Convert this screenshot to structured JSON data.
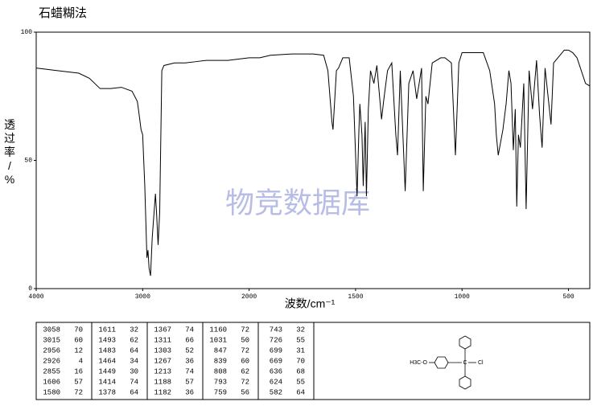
{
  "title": "石蜡糊法",
  "watermark": "物竞数据库",
  "chart_data": {
    "type": "line",
    "color": "#000000",
    "xlabel": "波数/cm⁻¹",
    "ylabel": "透过率/%",
    "xlim": [
      4000,
      400
    ],
    "ylim": [
      0,
      100
    ],
    "xscale": {
      "type": "piecewise",
      "break": 2000,
      "ratio": 2
    },
    "xticks": [
      4000,
      3000,
      2000,
      1500,
      1000,
      500
    ],
    "yticks": [
      0,
      50,
      100
    ],
    "x": [
      4000,
      3800,
      3600,
      3500,
      3400,
      3300,
      3200,
      3100,
      3050,
      3040,
      3015,
      3000,
      2980,
      2960,
      2950,
      2940,
      2926,
      2910,
      2880,
      2870,
      2855,
      2840,
      2820,
      2800,
      2700,
      2600,
      2500,
      2400,
      2300,
      2200,
      2100,
      2000,
      1950,
      1900,
      1800,
      1700,
      1650,
      1630,
      1611,
      1606,
      1590,
      1580,
      1560,
      1530,
      1510,
      1493,
      1485,
      1480,
      1470,
      1464,
      1455,
      1449,
      1440,
      1430,
      1414,
      1400,
      1378,
      1367,
      1350,
      1330,
      1311,
      1303,
      1290,
      1267,
      1250,
      1230,
      1213,
      1190,
      1182,
      1170,
      1160,
      1140,
      1100,
      1080,
      1050,
      1031,
      1015,
      1000,
      950,
      900,
      870,
      847,
      839,
      830,
      808,
      793,
      780,
      770,
      759,
      750,
      743,
      735,
      726,
      710,
      699,
      685,
      669,
      650,
      636,
      624,
      610,
      582,
      570,
      550,
      520,
      500,
      480,
      460,
      420,
      400
    ],
    "values": [
      86,
      85,
      84,
      82,
      78,
      78,
      78.5,
      77,
      73,
      70,
      62,
      60,
      40,
      12,
      15,
      8,
      5,
      20,
      37,
      30,
      17,
      30,
      85,
      87,
      88,
      88,
      88.5,
      89,
      89,
      89,
      89.5,
      90,
      90,
      91,
      91.5,
      91.5,
      91,
      85,
      65,
      62,
      85,
      86,
      90,
      90,
      75,
      36,
      60,
      72,
      60,
      40,
      65,
      36,
      70,
      85,
      80,
      87,
      66,
      74,
      85,
      88,
      60,
      52,
      85,
      38,
      80,
      85,
      74,
      86,
      38,
      75,
      72,
      88,
      90,
      90,
      88,
      52,
      88,
      92,
      92,
      92,
      85,
      72,
      60,
      52,
      62,
      72,
      85,
      80,
      54,
      70,
      32,
      60,
      55,
      80,
      31,
      85,
      70,
      89,
      68,
      55,
      86,
      64,
      88,
      90,
      93,
      93,
      92,
      90,
      80,
      79
    ]
  },
  "peak_table": {
    "columns": [
      [
        [
          3058,
          70
        ],
        [
          3015,
          60
        ],
        [
          2956,
          12
        ],
        [
          2926,
          4
        ],
        [
          2855,
          16
        ],
        [
          1606,
          57
        ],
        [
          1580,
          72
        ]
      ],
      [
        [
          1611,
          32
        ],
        [
          1493,
          62
        ],
        [
          1483,
          64
        ],
        [
          1464,
          34
        ],
        [
          1449,
          30
        ],
        [
          1414,
          74
        ],
        [
          1378,
          64
        ]
      ],
      [
        [
          1367,
          74
        ],
        [
          1311,
          66
        ],
        [
          1303,
          52
        ],
        [
          1267,
          36
        ],
        [
          1213,
          74
        ],
        [
          1188,
          57
        ],
        [
          1182,
          36
        ]
      ],
      [
        [
          1160,
          72
        ],
        [
          1031,
          50
        ],
        [
          847,
          72
        ],
        [
          839,
          60
        ],
        [
          808,
          62
        ],
        [
          793,
          72
        ],
        [
          759,
          56
        ]
      ],
      [
        [
          743,
          32
        ],
        [
          726,
          55
        ],
        [
          699,
          31
        ],
        [
          669,
          70
        ],
        [
          636,
          68
        ],
        [
          624,
          55
        ],
        [
          582,
          64
        ]
      ]
    ]
  },
  "structure": {
    "labels": [
      "H3C-O",
      "C",
      "Cl"
    ]
  }
}
